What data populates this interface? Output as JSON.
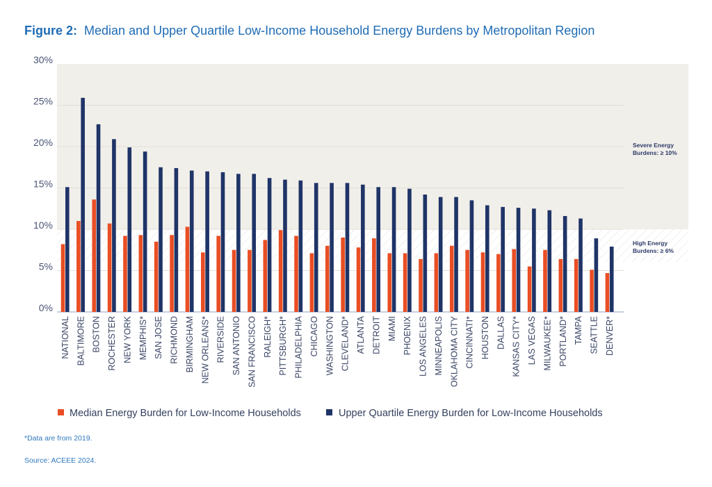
{
  "chart_data": {
    "type": "bar",
    "title_prefix": "Figure 2:",
    "title": "Median and Upper Quartile Low-Income Household Energy Burdens by Metropolitan Region",
    "xlabel": "",
    "ylabel": "",
    "ylim": [
      0,
      30
    ],
    "yticks": [
      "0%",
      "5%",
      "10%",
      "15%",
      "20%",
      "25%",
      "30%"
    ],
    "ytick_values": [
      0,
      5,
      10,
      15,
      20,
      25,
      30
    ],
    "grid": true,
    "legend_placement": "bottom",
    "categories": [
      "NATIONAL",
      "BALTIMORE",
      "BOSTON",
      "ROCHESTER",
      "NEW YORK",
      "MEMPHIS*",
      "SAN JOSE",
      "RICHMOND",
      "BIRMINGHAM",
      "NEW ORLEANS*",
      "RIVERSIDE",
      "SAN ANTONIO",
      "SAN FRANCISCO",
      "RALEIGH*",
      "PITTSBURGH*",
      "PHILADELPHIA",
      "CHICAGO",
      "WASHINGTON",
      "CLEVELAND*",
      "ATLANTA",
      "DETROIT",
      "MIAMI",
      "PHOENIX",
      "LOS ANGELES",
      "MINNEAPOLIS",
      "OKLAHOMA CITY",
      "CINCINNATI*",
      "HOUSTON",
      "DALLAS",
      "KANSAS CITY*",
      "LAS VEGAS",
      "MILWAUKEE*",
      "PORTLAND*",
      "TAMPA",
      "SEATTLE",
      "DENVER*"
    ],
    "series": [
      {
        "name": "Median Energy Burden for Low-Income Households",
        "color": "#e94e24",
        "values": [
          8.2,
          11.0,
          13.6,
          10.7,
          9.2,
          9.3,
          8.5,
          9.3,
          10.3,
          7.2,
          9.2,
          7.5,
          7.5,
          8.7,
          9.9,
          9.2,
          7.1,
          8.0,
          9.0,
          7.8,
          8.9,
          7.1,
          7.1,
          6.4,
          7.1,
          8.0,
          7.5,
          7.2,
          7.0,
          7.6,
          5.5,
          7.5,
          6.4,
          6.4,
          5.1,
          4.7
        ]
      },
      {
        "name": "Upper Quartile Energy Burden for Low-Income Households",
        "color": "#1f3467",
        "values": [
          15.1,
          25.9,
          22.7,
          20.9,
          19.9,
          19.4,
          17.5,
          17.4,
          17.1,
          17.0,
          16.9,
          16.7,
          16.7,
          16.2,
          16.0,
          15.9,
          15.6,
          15.6,
          15.6,
          15.4,
          15.1,
          15.1,
          14.9,
          14.2,
          13.9,
          13.9,
          13.5,
          12.9,
          12.7,
          12.6,
          12.5,
          12.3,
          11.6,
          11.3,
          8.9,
          7.9
        ]
      }
    ],
    "bands": [
      {
        "label_line1": "Severe Energy",
        "label_line2": "Burdens: ≥ 10%",
        "from": 10,
        "to": 30,
        "fill": "#f1efea"
      },
      {
        "label_line1": "High Energy",
        "label_line2": "Burdens: ≥ 6%",
        "from": 6,
        "to": 10,
        "fill": "hatched"
      }
    ]
  },
  "notes": {
    "footnote": "*Data are from 2019.",
    "source": "Source: ACEEE 2024."
  }
}
